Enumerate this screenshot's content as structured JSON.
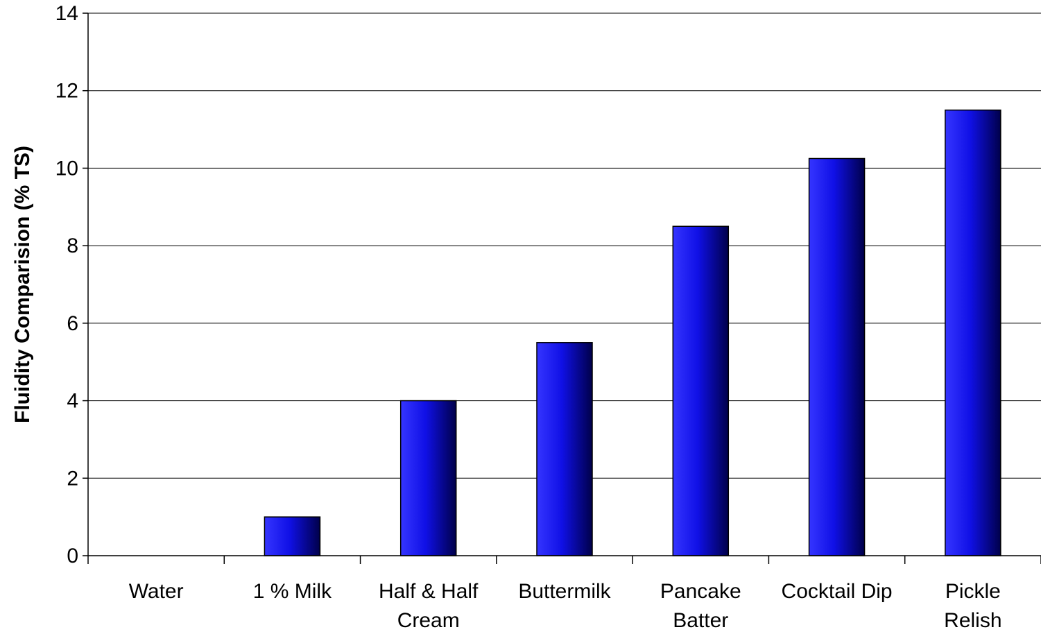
{
  "chart_data": {
    "type": "bar",
    "title": "",
    "xlabel": "",
    "ylabel": "Fluidity Comparision (% TS)",
    "categories": [
      [
        "Water"
      ],
      [
        "1 % Milk"
      ],
      [
        "Half & Half",
        "Cream"
      ],
      [
        "Buttermilk"
      ],
      [
        "Pancake",
        "Batter"
      ],
      [
        "Cocktail Dip"
      ],
      [
        "Pickle",
        "Relish"
      ]
    ],
    "values": [
      0,
      1,
      4,
      5.5,
      8.5,
      10.25,
      11.5
    ],
    "ylim": [
      0,
      14
    ],
    "yticks": [
      0,
      2,
      4,
      6,
      8,
      10,
      12,
      14
    ],
    "grid": true,
    "legend": "none",
    "colors": {
      "bar_light": "#3535ff",
      "bar_mid": "#1010e6",
      "bar_dark": "#00004a",
      "grid": "#000000"
    }
  }
}
